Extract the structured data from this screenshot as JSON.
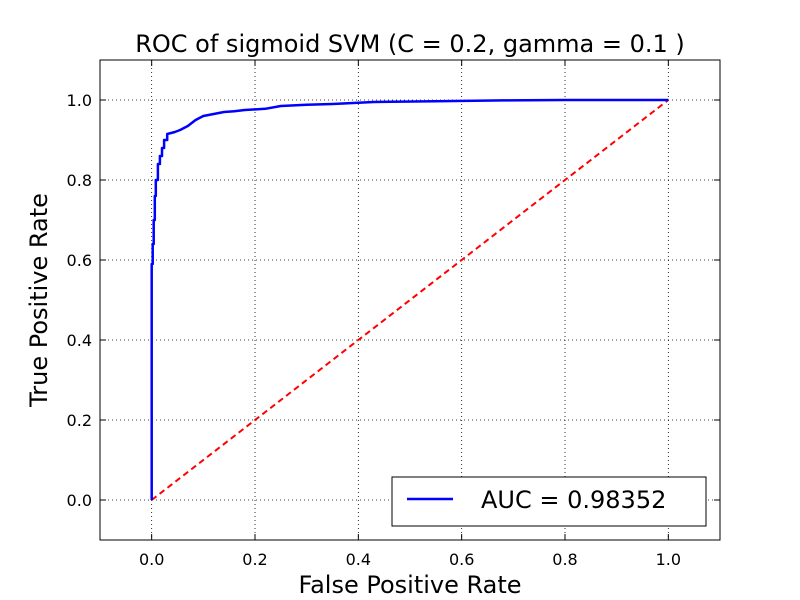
{
  "chart_data": {
    "type": "line",
    "title": "ROC of sigmoid SVM (C = 0.2, gamma = 0.1 )",
    "xlabel": "False Positive Rate",
    "ylabel": "True Positive Rate",
    "xlim": [
      -0.1,
      1.1
    ],
    "ylim": [
      -0.1,
      1.1
    ],
    "xticks": [
      0.0,
      0.2,
      0.4,
      0.6,
      0.8,
      1.0
    ],
    "yticks": [
      0.0,
      0.2,
      0.4,
      0.6,
      0.8,
      1.0
    ],
    "xtick_labels": [
      "0.0",
      "0.2",
      "0.4",
      "0.6",
      "0.8",
      "1.0"
    ],
    "ytick_labels": [
      "0.0",
      "0.2",
      "0.4",
      "0.6",
      "0.8",
      "1.0"
    ],
    "grid": true,
    "legend_position": "lower-right",
    "legend_label": "AUC = 0.98352",
    "series": [
      {
        "name": "AUC = 0.98352",
        "color": "#0000ff",
        "style": "solid",
        "x": [
          0.0,
          0.0,
          0.002,
          0.002,
          0.004,
          0.004,
          0.006,
          0.006,
          0.008,
          0.008,
          0.012,
          0.012,
          0.016,
          0.016,
          0.02,
          0.02,
          0.024,
          0.024,
          0.03,
          0.03,
          0.045,
          0.055,
          0.07,
          0.085,
          0.1,
          0.12,
          0.14,
          0.16,
          0.18,
          0.22,
          0.25,
          0.3,
          0.35,
          0.43,
          0.55,
          0.68,
          0.8,
          0.9,
          1.0
        ],
        "y": [
          0.0,
          0.59,
          0.59,
          0.64,
          0.64,
          0.7,
          0.7,
          0.76,
          0.76,
          0.8,
          0.8,
          0.84,
          0.84,
          0.86,
          0.86,
          0.88,
          0.88,
          0.9,
          0.9,
          0.915,
          0.92,
          0.925,
          0.935,
          0.95,
          0.96,
          0.965,
          0.97,
          0.972,
          0.975,
          0.978,
          0.985,
          0.988,
          0.99,
          0.995,
          0.997,
          0.999,
          1.0,
          1.0,
          1.0
        ]
      },
      {
        "name": "",
        "color": "#ff0000",
        "style": "dashed",
        "x": [
          0.0,
          1.0
        ],
        "y": [
          0.0,
          1.0
        ]
      }
    ]
  }
}
